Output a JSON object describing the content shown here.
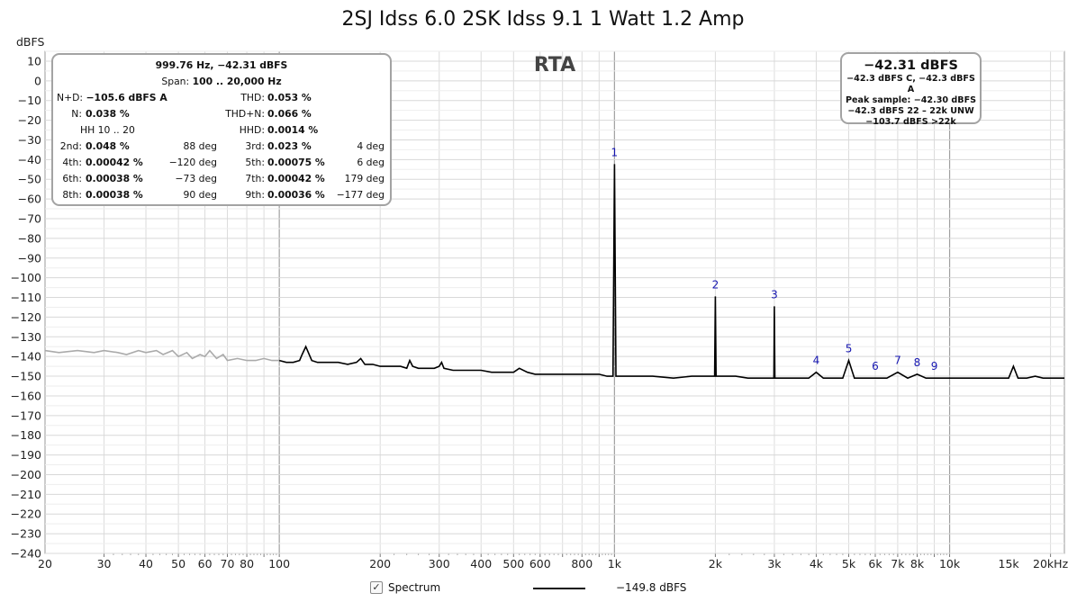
{
  "title": "2SJ Idss 6.0 2SK Idss 9.1 1 Watt 1.2 Amp",
  "rta_label": "RTA",
  "y_unit": "dBFS",
  "stats": {
    "freq_line": "999.76 Hz, −42.31 dBFS",
    "span_label": "Span:",
    "span_value": "100 .. 20,000 Hz",
    "nd_label": "N+D:",
    "nd_value": "−105.6 dBFS A",
    "thd_label": "THD:",
    "thd_value": "0.053 %",
    "n_label": "N:",
    "n_value": "0.038 %",
    "thdn_label": "THD+N:",
    "thdn_value": "0.066 %",
    "hh_label": "HH 10 .. 20",
    "hhd_label": "HHD:",
    "hhd_value": "0.0014 %",
    "harmonics": [
      {
        "label": "2nd:",
        "value": "0.048 %",
        "phase": "88 deg"
      },
      {
        "label": "3rd:",
        "value": "0.023 %",
        "phase": "4 deg"
      },
      {
        "label": "4th:",
        "value": "0.00042 %",
        "phase": "−120 deg"
      },
      {
        "label": "5th:",
        "value": "0.00075 %",
        "phase": "6 deg"
      },
      {
        "label": "6th:",
        "value": "0.00038 %",
        "phase": "−73 deg"
      },
      {
        "label": "7th:",
        "value": "0.00042 %",
        "phase": "179 deg"
      },
      {
        "label": "8th:",
        "value": "0.00038 %",
        "phase": "90 deg"
      },
      {
        "label": "9th:",
        "value": "0.00036 %",
        "phase": "−177 deg"
      }
    ]
  },
  "level_box": {
    "main": "−42.31 dBFS",
    "lines": [
      "−42.3 dBFS C, −42.3 dBFS A",
      "Peak sample: −42.30 dBFS",
      "−42.3 dBFS 22 – 22k UNW",
      "−103.7 dBFS >22k"
    ]
  },
  "legend": {
    "checkbox": "✓",
    "series_name": "Spectrum",
    "value": "−149.8 dBFS"
  },
  "colors": {
    "trace": "#000000",
    "trace_below_span": "#aaaaaa",
    "harmonic_labels": "#1515b0",
    "grid": "#dcdcdc",
    "grid_decade": "#a0a0a0"
  },
  "chart_data": {
    "type": "line",
    "title": "2SJ Idss 6.0 2SK Idss 9.1 1 Watt 1.2 Amp",
    "xlabel": "",
    "ylabel": "dBFS",
    "x_scale": "log",
    "xlim": [
      20,
      22000
    ],
    "ylim": [
      -240,
      15
    ],
    "x_tick_labels": [
      {
        "v": 20,
        "t": "20"
      },
      {
        "v": 30,
        "t": "30"
      },
      {
        "v": 40,
        "t": "40"
      },
      {
        "v": 50,
        "t": "50"
      },
      {
        "v": 60,
        "t": "60"
      },
      {
        "v": 70,
        "t": "70"
      },
      {
        "v": 80,
        "t": "80"
      },
      {
        "v": 100,
        "t": "100"
      },
      {
        "v": 200,
        "t": "200"
      },
      {
        "v": 300,
        "t": "300"
      },
      {
        "v": 400,
        "t": "400"
      },
      {
        "v": 500,
        "t": "500"
      },
      {
        "v": 600,
        "t": "600"
      },
      {
        "v": 800,
        "t": "800"
      },
      {
        "v": 1000,
        "t": "1k"
      },
      {
        "v": 2000,
        "t": "2k"
      },
      {
        "v": 3000,
        "t": "3k"
      },
      {
        "v": 4000,
        "t": "4k"
      },
      {
        "v": 5000,
        "t": "5k"
      },
      {
        "v": 6000,
        "t": "6k"
      },
      {
        "v": 7000,
        "t": "7k"
      },
      {
        "v": 8000,
        "t": "8k"
      },
      {
        "v": 10000,
        "t": "10k"
      },
      {
        "v": 15000,
        "t": "15k"
      },
      {
        "v": 20000,
        "t": "20kHz"
      }
    ],
    "y_ticks": [
      10,
      0,
      -10,
      -20,
      -30,
      -40,
      -50,
      -60,
      -70,
      -80,
      -90,
      -100,
      -110,
      -120,
      -130,
      -140,
      -150,
      -160,
      -170,
      -180,
      -190,
      -200,
      -210,
      -220,
      -230,
      -240
    ],
    "grid": true,
    "analysis_span_hz": [
      100,
      20000
    ],
    "series": [
      {
        "name": "Spectrum",
        "x": [
          20,
          22,
          25,
          28,
          30,
          33,
          35,
          38,
          40,
          43,
          45,
          48,
          50,
          53,
          55,
          58,
          60,
          62,
          65,
          68,
          70,
          75,
          80,
          85,
          90,
          95,
          100,
          105,
          110,
          115,
          117,
          120,
          125,
          130,
          140,
          150,
          160,
          170,
          175,
          180,
          190,
          200,
          210,
          220,
          230,
          240,
          245,
          250,
          260,
          270,
          280,
          290,
          300,
          305,
          310,
          330,
          350,
          370,
          400,
          430,
          470,
          500,
          520,
          550,
          580,
          600,
          650,
          700,
          750,
          800,
          850,
          900,
          950,
          990,
          1000,
          1010,
          1050,
          1100,
          1200,
          1300,
          1500,
          1700,
          1900,
          1990,
          2000,
          2010,
          2100,
          2300,
          2500,
          2800,
          2990,
          3000,
          3010,
          3200,
          3500,
          3800,
          4000,
          4200,
          4500,
          4800,
          5000,
          5200,
          5500,
          6000,
          6500,
          7000,
          7500,
          8000,
          8500,
          9000,
          10000,
          11000,
          12000,
          13000,
          14000,
          15000,
          15500,
          16000,
          17000,
          18000,
          19000,
          20000,
          21000,
          22000
        ],
        "y": [
          -137,
          -138,
          -137,
          -138,
          -137,
          -138,
          -139,
          -137,
          -138,
          -137,
          -139,
          -137,
          -140,
          -138,
          -141,
          -139,
          -140,
          -137,
          -141,
          -139,
          -142,
          -141,
          -142,
          -142,
          -141,
          -142,
          -142,
          -143,
          -143,
          -142,
          -139,
          -135,
          -142,
          -143,
          -143,
          -143,
          -144,
          -143,
          -141,
          -144,
          -144,
          -145,
          -145,
          -145,
          -145,
          -146,
          -142,
          -145,
          -146,
          -146,
          -146,
          -146,
          -145,
          -143,
          -146,
          -147,
          -147,
          -147,
          -147,
          -148,
          -148,
          -148,
          -146,
          -148,
          -149,
          -149,
          -149,
          -149,
          -149,
          -149,
          -149,
          -149,
          -150,
          -150,
          -42.3,
          -150,
          -150,
          -150,
          -150,
          -150,
          -151,
          -150,
          -150,
          -150,
          -109.5,
          -150,
          -150,
          -150,
          -151,
          -151,
          -151,
          -114.5,
          -151,
          -151,
          -151,
          -151,
          -148,
          -151,
          -151,
          -151,
          -142,
          -151,
          -151,
          -151,
          -151,
          -148,
          -151,
          -149,
          -151,
          -151,
          -151,
          -151,
          -151,
          -151,
          -151,
          -151,
          -145,
          -151,
          -151,
          -150,
          -151,
          -151,
          -151,
          -151
        ]
      }
    ],
    "harmonic_markers": [
      {
        "label": "1",
        "x": 1000,
        "y": -42.3
      },
      {
        "label": "2",
        "x": 2000,
        "y": -109.5
      },
      {
        "label": "3",
        "x": 3000,
        "y": -114.5
      },
      {
        "label": "4",
        "x": 4000,
        "y": -148
      },
      {
        "label": "5",
        "x": 5000,
        "y": -142
      },
      {
        "label": "6",
        "x": 6000,
        "y": -151
      },
      {
        "label": "7",
        "x": 7000,
        "y": -148
      },
      {
        "label": "8",
        "x": 8000,
        "y": -149
      },
      {
        "label": "9",
        "x": 9000,
        "y": -151
      }
    ]
  }
}
